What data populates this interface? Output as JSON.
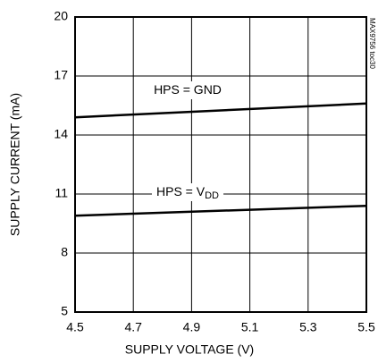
{
  "chart_data": {
    "type": "line",
    "xlabel": "SUPPLY VOLTAGE (V)",
    "ylabel": "SUPPLY CURRENT (mA)",
    "watermark": "MAX9756 toc30",
    "x": [
      4.5,
      5.5
    ],
    "series": [
      {
        "name": "HPS = GND",
        "color": "#000000",
        "values": [
          14.9,
          15.6
        ]
      },
      {
        "name": "HPS = V",
        "name_sub": "DD",
        "color": "#000000",
        "values": [
          9.9,
          10.4
        ]
      }
    ],
    "xlim": [
      4.5,
      5.5
    ],
    "xticks": [
      4.5,
      4.7,
      4.9,
      5.1,
      5.3,
      5.5
    ],
    "ylim": [
      5,
      20
    ],
    "yticks": [
      5,
      8,
      11,
      14,
      17,
      20
    ],
    "grid": true
  }
}
